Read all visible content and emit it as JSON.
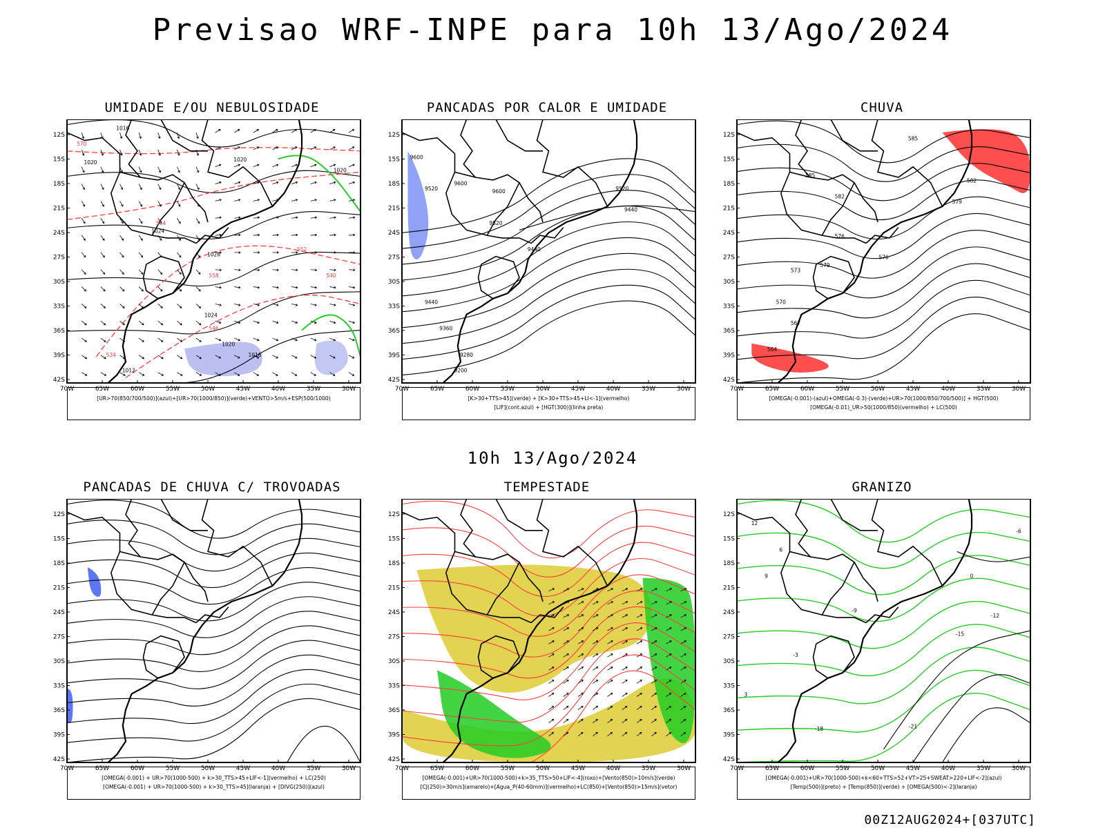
{
  "header": {
    "title": "Previsao WRF-INPE  para 10h 13/Ago/2024",
    "mid_title": "10h 13/Ago/2024",
    "footer": "00Z12AUG2024+[037UTC]"
  },
  "axes": {
    "lat_labels": [
      "12S",
      "15S",
      "18S",
      "21S",
      "24S",
      "27S",
      "30S",
      "33S",
      "36S",
      "39S",
      "42S"
    ],
    "lon_labels": [
      "70W",
      "65W",
      "60W",
      "55W",
      "50W",
      "45W",
      "40W",
      "35W",
      "30W"
    ]
  },
  "panels": [
    {
      "title": "UMIDADE E/OU NEBULOSIDADE",
      "legend": [
        "[UR>70(850/700/500)](azul)+[UR>70(1000/850)](verde)+VENTO>5m/s+ESP(500/1000)"
      ],
      "labels": [
        "1016",
        "1020",
        "1020",
        "1024",
        "1020",
        "1028",
        "1024",
        "1020",
        "1016",
        "1012",
        "570",
        "564",
        "558",
        "552",
        "546",
        "540",
        "534"
      ]
    },
    {
      "title": "PANCADAS POR CALOR E UMIDADE",
      "legend": [
        "[K>30+TTS>45](verde) + [K>30+TTS>45+LI<-1](vermelho)",
        "[LIF](cont.azul) + [HGT(300)](linha preta)"
      ],
      "labels": [
        "9600",
        "9520",
        "9600",
        "9520",
        "9440",
        "9440",
        "9360",
        "9280",
        "9200",
        "9440",
        "9520",
        "9600"
      ]
    },
    {
      "title": "CHUVA",
      "legend": [
        "[OMEGA(-0.001)-(azul)+OMEGA(-0.3)-(verde)+UR>70(1000/850/700/500)] + HGT(500)",
        "[OMEGA(-0.01)_UR>50(1000/850)(vermelho) + LC(500)"
      ],
      "labels": [
        "585",
        "582",
        "579",
        "576",
        "573",
        "570",
        "567",
        "564",
        "585",
        "582",
        "579",
        "576"
      ]
    },
    {
      "title": "PANCADAS DE CHUVA C/ TROVOADAS",
      "legend": [
        "[OMEGA(-0.001) + UR>70(1000-500) + k>30_TTS>45+LIF<-1](vermelho) + LC(250)",
        "[OMEGA(-0.001) + UR>70(1000-500) + k>30_TTS>45](laranja) + [DIVG(250)](azul)"
      ],
      "labels": []
    },
    {
      "title": "TEMPESTADE",
      "legend": [
        "[OMEGA(-0.001)+UR>70(1000-500)+k>35_TTS>50+LIF<-4](roxo)+[Vento(850)>10m/s](verde)",
        "[CJ(250)>30m/s](amarelo)+[Agua_P(40-60mm)](vermelho)+LC(850)+[Vento(850)>15m/s](vetor)"
      ],
      "labels": []
    },
    {
      "title": "GRANIZO",
      "legend": [
        "[OMEGA(-0.001)+UR>70(1000-500)+k<60+TTS>52+VT>25+SWEAT>220+LIF<-2](azul)",
        "[Temp(500)](preto) + [Temp(850)](verde) + [OMEGA(500)<-2](laranja)"
      ],
      "labels": [
        "-6",
        "-9",
        "-12",
        "-15",
        "-18",
        "-21",
        "0",
        "-3",
        "3",
        "6",
        "9",
        "12"
      ]
    }
  ],
  "colors": {
    "red": "#ff3b3b",
    "green": "#22cc22",
    "blue": "#3355ee",
    "lavender": "#aab0ee",
    "yellow": "#ddcc33",
    "black": "#000000"
  }
}
